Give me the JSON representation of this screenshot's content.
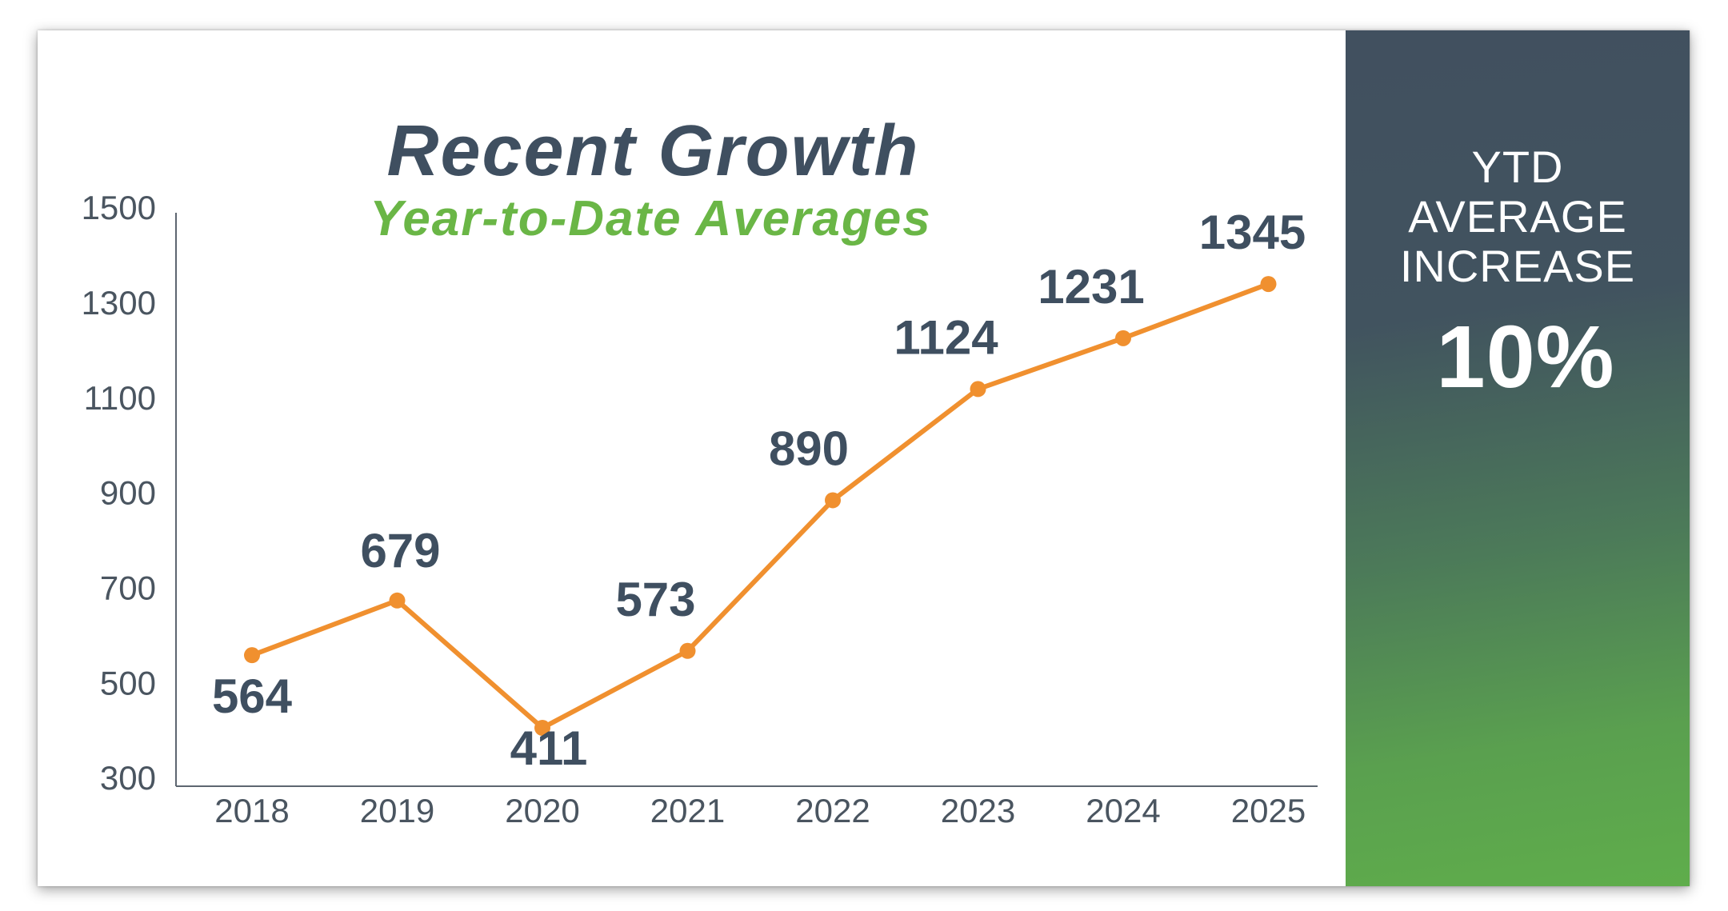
{
  "chart_data": {
    "type": "line",
    "title": "Recent Growth",
    "subtitle": "Year-to-Date Averages",
    "categories": [
      "2018",
      "2019",
      "2020",
      "2021",
      "2022",
      "2023",
      "2024",
      "2025"
    ],
    "series": [
      {
        "values": [
          564,
          679,
          411,
          573,
          890,
          1124,
          1231,
          1345
        ]
      }
    ],
    "data_labels": [
      "564",
      "679",
      "411",
      "573",
      "890",
      "1124",
      "1231",
      "1345"
    ],
    "yticks": [
      1500,
      1300,
      1100,
      900,
      700,
      500,
      300
    ],
    "ylim": [
      300,
      1500
    ],
    "grid": false,
    "colors": {
      "line": "#f0902f",
      "labels": "#3f4f60",
      "ticks": "#4a5560",
      "axis": "#5d6670"
    }
  },
  "panel": {
    "label_lines": [
      "YTD",
      "AVERAGE",
      "INCREASE"
    ],
    "value": "10%"
  },
  "colors": {
    "title": "#3f4f60",
    "subtitle": "#6ab646",
    "panel_top": "#41505f",
    "panel_bottom": "#5fad4b"
  }
}
